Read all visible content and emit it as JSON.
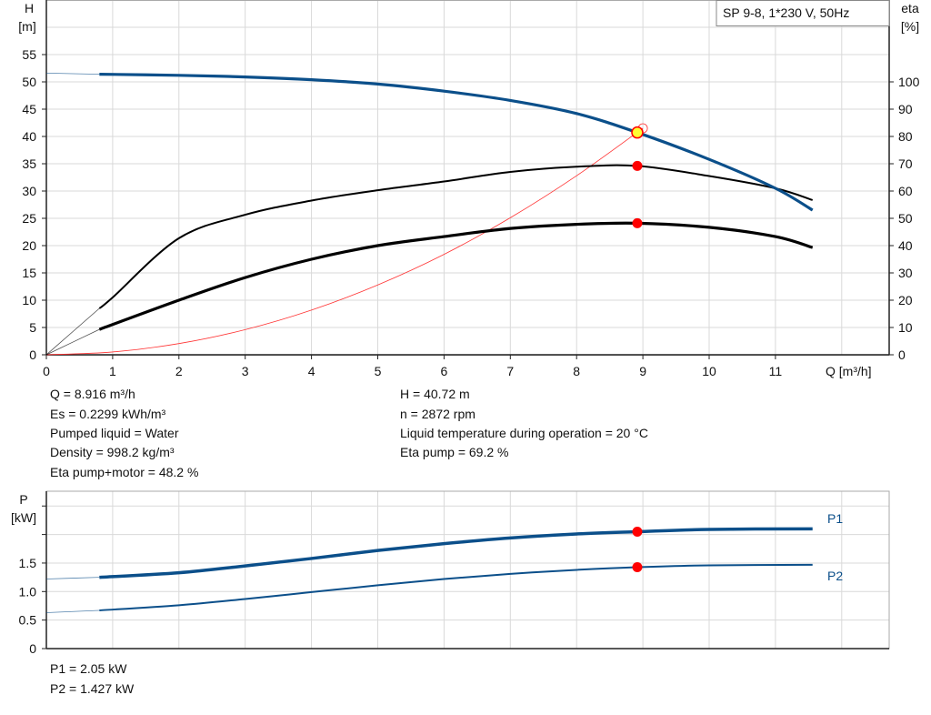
{
  "legend_box": "SP 9-8, 1*230 V, 50Hz",
  "colors": {
    "head": "#0b4f8a",
    "efficiency": "#000000",
    "system": "#ff3333",
    "operating_point": "#ff0000",
    "duty_point_fill": "#ffff33",
    "power": "#0b4f8a"
  },
  "info": {
    "left": [
      "Q = 8.916 m³/h",
      "Es = 0.2299 kWh/m³",
      "Pumped liquid = Water",
      "Density = 998.2 kg/m³",
      "Eta pump+motor = 48.2 %"
    ],
    "right": [
      "H = 40.72 m",
      "n = 2872 rpm",
      "Liquid temperature during operation = 20 °C",
      "Eta pump = 69.2 %"
    ]
  },
  "power_info": [
    "P1 = 2.05 kW",
    "P2 = 1.427 kW"
  ],
  "chart_data": [
    {
      "type": "line",
      "xlabel": "Q [m³/h]",
      "ylabel": "H [m]",
      "ylabel_unit_top": "H",
      "ylabel_unit_bottom": "[m]",
      "y2label_top": "eta",
      "y2label_bottom": "[%]",
      "xlim": [
        0,
        12.7
      ],
      "ylim": [
        0,
        65
      ],
      "y2lim": [
        0,
        130
      ],
      "xticks": [
        "0",
        "1",
        "2",
        "3",
        "4",
        "5",
        "6",
        "7",
        "8",
        "9",
        "10",
        "11"
      ],
      "yticks": [
        "0",
        "5",
        "10",
        "15",
        "20",
        "25",
        "30",
        "35",
        "40",
        "45",
        "50",
        "55"
      ],
      "y2ticks": [
        "0",
        "10",
        "20",
        "30",
        "40",
        "50",
        "60",
        "70",
        "80",
        "90",
        "100"
      ],
      "grid": true,
      "series": [
        {
          "id": "head",
          "axis": "left",
          "x": [
            0.8,
            2,
            3,
            4,
            5,
            6,
            7,
            8,
            8.916,
            10,
            11,
            11.56
          ],
          "y": [
            51.4,
            51.2,
            50.9,
            50.4,
            49.6,
            48.3,
            46.6,
            44.2,
            40.72,
            35.8,
            30.5,
            26.5
          ],
          "extension": {
            "x": [
              0,
              0.8
            ],
            "y": [
              51.6,
              51.4
            ]
          }
        },
        {
          "id": "eta-pump",
          "axis": "right",
          "x": [
            0.8,
            1,
            2,
            3,
            4,
            5,
            6,
            7,
            8,
            8.916,
            10,
            11,
            11.56
          ],
          "y": [
            17,
            21,
            42.7,
            51.3,
            56.5,
            60.3,
            63.5,
            67,
            68.9,
            69.2,
            65.5,
            61,
            56.7
          ],
          "extension": {
            "x": [
              0,
              0.8
            ],
            "y": [
              0,
              17
            ]
          }
        },
        {
          "id": "eta-pump-motor",
          "axis": "right",
          "x": [
            0.8,
            2,
            3,
            4,
            5,
            6,
            7,
            8,
            8.916,
            10,
            11,
            11.56
          ],
          "y": [
            9.3,
            20,
            28.3,
            35,
            40,
            43.3,
            46.3,
            47.8,
            48.2,
            46.7,
            43.3,
            39.3
          ],
          "extension": {
            "x": [
              0,
              0.8
            ],
            "y": [
              0,
              9.3
            ]
          }
        },
        {
          "id": "system-curve",
          "axis": "left",
          "x": [
            0,
            1,
            2,
            3,
            4,
            5,
            6,
            7,
            8,
            9
          ],
          "y": [
            0,
            0.51,
            2.05,
            4.61,
            8.19,
            12.8,
            18.4,
            25.1,
            32.8,
            41.5
          ]
        }
      ],
      "operating_point": {
        "Q": 8.916,
        "H": 40.72,
        "eta_pump": 69.2,
        "eta_pump_motor": 48.2
      }
    },
    {
      "type": "line",
      "ylabel_top": "P",
      "ylabel_bottom": "[kW]",
      "xlim": [
        0,
        12.7
      ],
      "ylim": [
        0,
        2.75
      ],
      "yticks": [
        "0",
        "0.5",
        "1.0",
        "1.5"
      ],
      "grid": true,
      "series": [
        {
          "name": "P1",
          "x": [
            0.8,
            2,
            3,
            4,
            5,
            6,
            7,
            8,
            8.916,
            10,
            11.56
          ],
          "y": [
            1.25,
            1.33,
            1.45,
            1.58,
            1.72,
            1.84,
            1.94,
            2.01,
            2.05,
            2.09,
            2.1
          ],
          "extension": {
            "x": [
              0,
              0.8
            ],
            "y": [
              1.22,
              1.25
            ]
          }
        },
        {
          "name": "P2",
          "x": [
            0.8,
            2,
            3,
            4,
            5,
            6,
            7,
            8,
            8.916,
            10,
            11.56
          ],
          "y": [
            0.67,
            0.76,
            0.87,
            0.99,
            1.11,
            1.22,
            1.31,
            1.38,
            1.427,
            1.46,
            1.47
          ],
          "extension": {
            "x": [
              0,
              0.8
            ],
            "y": [
              0.63,
              0.67
            ]
          }
        }
      ],
      "operating_point": {
        "Q": 8.916,
        "P1": 2.05,
        "P2": 1.427
      }
    }
  ]
}
